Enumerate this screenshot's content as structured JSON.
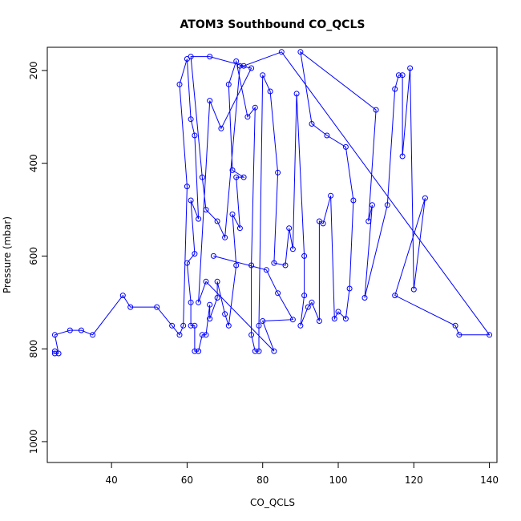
{
  "chart_data": {
    "type": "line",
    "title": "ATOM3 Southbound CO_QCLS",
    "xlabel": "CO_QCLS",
    "ylabel": "Pressure (mbar)",
    "xlim": [
      23,
      142
    ],
    "ylim": [
      1045,
      150
    ],
    "y_reversed": true,
    "x_ticks": [
      40,
      60,
      80,
      100,
      120,
      140
    ],
    "y_ticks": [
      200,
      400,
      600,
      800,
      1000
    ],
    "grid": false,
    "legend": "none",
    "series_color": "#0000ff",
    "marker": "open-circle",
    "series": [
      {
        "points": [
          [
            25,
            805
          ],
          [
            25,
            810
          ],
          [
            26,
            810
          ],
          [
            25,
            770
          ],
          [
            29,
            760
          ],
          [
            32,
            760
          ],
          [
            35,
            770
          ],
          [
            43,
            685
          ],
          [
            45,
            710
          ],
          [
            52,
            710
          ],
          [
            56,
            750
          ],
          [
            58,
            770
          ],
          [
            59,
            750
          ],
          [
            60,
            450
          ],
          [
            58,
            230
          ],
          [
            60,
            175
          ],
          [
            61,
            305
          ],
          [
            62,
            340
          ],
          [
            63,
            520
          ],
          [
            61,
            480
          ],
          [
            62,
            595
          ],
          [
            60,
            615
          ],
          [
            61,
            700
          ],
          [
            61,
            750
          ],
          [
            62,
            750
          ],
          [
            62,
            805
          ],
          [
            63,
            805
          ],
          [
            64,
            770
          ],
          [
            65,
            770
          ],
          [
            66,
            705
          ],
          [
            66,
            735
          ],
          [
            68,
            690
          ],
          [
            68,
            655
          ],
          [
            70,
            725
          ],
          [
            71,
            750
          ],
          [
            73,
            620
          ],
          [
            72,
            510
          ],
          [
            74,
            540
          ],
          [
            73,
            430
          ],
          [
            75,
            430
          ],
          [
            72,
            415
          ],
          [
            71,
            230
          ],
          [
            73,
            180
          ],
          [
            76,
            300
          ],
          [
            78,
            280
          ],
          [
            77,
            620
          ],
          [
            77,
            770
          ],
          [
            78,
            805
          ],
          [
            79,
            805
          ],
          [
            79,
            750
          ],
          [
            80,
            210
          ],
          [
            82,
            245
          ],
          [
            84,
            420
          ],
          [
            83,
            615
          ],
          [
            86,
            620
          ],
          [
            87,
            540
          ],
          [
            88,
            585
          ],
          [
            89,
            250
          ],
          [
            91,
            600
          ],
          [
            91,
            685
          ],
          [
            90,
            750
          ],
          [
            92,
            710
          ],
          [
            93,
            700
          ],
          [
            95,
            740
          ],
          [
            95,
            525
          ],
          [
            96,
            530
          ],
          [
            98,
            470
          ],
          [
            99,
            735
          ],
          [
            100,
            720
          ],
          [
            102,
            735
          ],
          [
            103,
            670
          ],
          [
            104,
            480
          ],
          [
            102,
            365
          ],
          [
            97,
            340
          ],
          [
            93,
            315
          ],
          [
            90,
            160
          ],
          [
            110,
            285
          ],
          [
            108,
            525
          ],
          [
            109,
            490
          ],
          [
            107,
            690
          ],
          [
            113,
            490
          ],
          [
            115,
            240
          ],
          [
            116,
            210
          ],
          [
            117,
            210
          ],
          [
            117,
            385
          ],
          [
            119,
            195
          ],
          [
            120,
            672
          ],
          [
            123,
            475
          ],
          [
            115,
            685
          ],
          [
            131,
            750
          ],
          [
            132,
            770
          ],
          [
            140,
            770
          ],
          [
            85,
            160
          ],
          [
            75,
            190
          ],
          [
            66,
            170
          ],
          [
            61,
            170
          ],
          [
            64,
            430
          ],
          [
            65,
            500
          ],
          [
            68,
            525
          ],
          [
            70,
            560
          ],
          [
            74,
            190
          ],
          [
            77,
            195
          ],
          [
            69,
            325
          ],
          [
            66,
            265
          ],
          [
            63,
            700
          ],
          [
            65,
            655
          ],
          [
            83,
            805
          ],
          [
            80,
            740
          ],
          [
            88,
            737
          ],
          [
            84,
            680
          ],
          [
            81,
            630
          ],
          [
            67,
            600
          ]
        ]
      }
    ]
  }
}
